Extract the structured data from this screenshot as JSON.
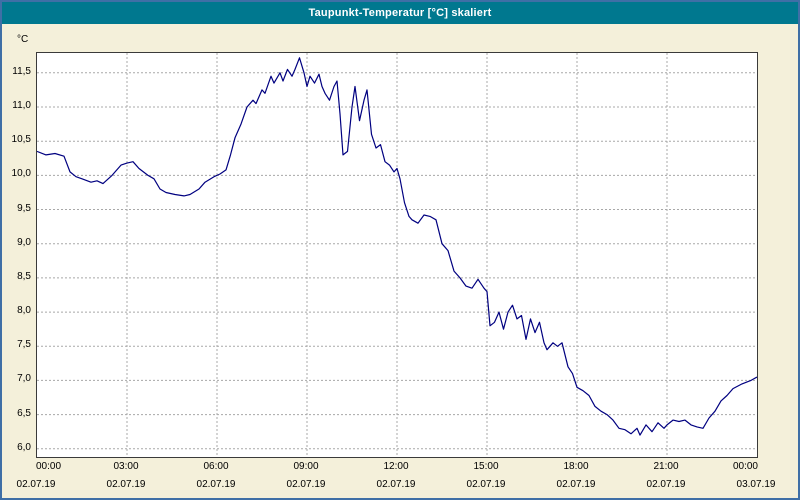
{
  "window": {
    "title": "Taupunkt-Temperatur [°C] skaliert"
  },
  "colors": {
    "titlebar": "#00788F",
    "titlebar_text": "#FFFFFF",
    "window_background": "#F4F0DA",
    "window_border": "#3F6FA6",
    "plot_background": "#FFFFFF",
    "plot_border": "#3A3A3A",
    "gridline": "#A8A8A8",
    "line": "#000080",
    "text": "#000000"
  },
  "chart_data": {
    "type": "line",
    "title": "Taupunkt-Temperatur [°C] skaliert",
    "ylabel": "°C",
    "xlabel": "",
    "grid": true,
    "legend_position": "none",
    "xlim": [
      0,
      24
    ],
    "ylim": [
      5.88,
      11.79
    ],
    "x_tick_hours": [
      0,
      3,
      6,
      9,
      12,
      15,
      18,
      21,
      24
    ],
    "x_tick_labels": [
      "00:00",
      "03:00",
      "06:00",
      "09:00",
      "12:00",
      "15:00",
      "18:00",
      "21:00",
      "00:00"
    ],
    "x_date_labels": [
      "02.07.19",
      "02.07.19",
      "02.07.19",
      "02.07.19",
      "02.07.19",
      "02.07.19",
      "02.07.19",
      "02.07.19",
      "03.07.19"
    ],
    "x_gridlines_hours": [
      3,
      6,
      9,
      12,
      15,
      18,
      21
    ],
    "y_ticks": [
      6.0,
      6.5,
      7.0,
      7.5,
      8.0,
      8.5,
      9.0,
      9.5,
      10.0,
      10.5,
      11.0,
      11.5
    ],
    "y_tick_labels": [
      "6,0",
      "6,5",
      "7,0",
      "7,5",
      "8,0",
      "8,5",
      "9,0",
      "9,5",
      "10,0",
      "10,5",
      "11,0",
      "11,5"
    ],
    "series": [
      {
        "name": "Taupunkt-Temperatur",
        "color": "#000080",
        "points": [
          [
            0.0,
            10.35
          ],
          [
            0.3,
            10.3
          ],
          [
            0.6,
            10.32
          ],
          [
            0.9,
            10.28
          ],
          [
            1.1,
            10.05
          ],
          [
            1.3,
            9.98
          ],
          [
            1.5,
            9.95
          ],
          [
            1.8,
            9.9
          ],
          [
            2.0,
            9.92
          ],
          [
            2.2,
            9.88
          ],
          [
            2.5,
            10.0
          ],
          [
            2.8,
            10.15
          ],
          [
            3.0,
            10.18
          ],
          [
            3.2,
            10.2
          ],
          [
            3.4,
            10.1
          ],
          [
            3.7,
            10.0
          ],
          [
            3.9,
            9.95
          ],
          [
            4.1,
            9.8
          ],
          [
            4.3,
            9.75
          ],
          [
            4.6,
            9.72
          ],
          [
            4.9,
            9.7
          ],
          [
            5.1,
            9.72
          ],
          [
            5.4,
            9.8
          ],
          [
            5.6,
            9.9
          ],
          [
            5.9,
            9.98
          ],
          [
            6.1,
            10.02
          ],
          [
            6.3,
            10.08
          ],
          [
            6.45,
            10.3
          ],
          [
            6.6,
            10.55
          ],
          [
            6.8,
            10.75
          ],
          [
            7.0,
            11.0
          ],
          [
            7.2,
            11.1
          ],
          [
            7.3,
            11.05
          ],
          [
            7.5,
            11.25
          ],
          [
            7.6,
            11.2
          ],
          [
            7.8,
            11.45
          ],
          [
            7.9,
            11.35
          ],
          [
            8.1,
            11.5
          ],
          [
            8.2,
            11.38
          ],
          [
            8.35,
            11.55
          ],
          [
            8.5,
            11.45
          ],
          [
            8.6,
            11.55
          ],
          [
            8.75,
            11.72
          ],
          [
            8.9,
            11.5
          ],
          [
            9.0,
            11.3
          ],
          [
            9.1,
            11.45
          ],
          [
            9.25,
            11.35
          ],
          [
            9.4,
            11.48
          ],
          [
            9.5,
            11.3
          ],
          [
            9.6,
            11.2
          ],
          [
            9.75,
            11.1
          ],
          [
            9.9,
            11.3
          ],
          [
            10.0,
            11.38
          ],
          [
            10.1,
            10.9
          ],
          [
            10.2,
            10.3
          ],
          [
            10.35,
            10.35
          ],
          [
            10.5,
            11.0
          ],
          [
            10.6,
            11.3
          ],
          [
            10.75,
            10.8
          ],
          [
            10.9,
            11.1
          ],
          [
            11.0,
            11.25
          ],
          [
            11.15,
            10.6
          ],
          [
            11.3,
            10.4
          ],
          [
            11.45,
            10.45
          ],
          [
            11.6,
            10.2
          ],
          [
            11.75,
            10.15
          ],
          [
            11.9,
            10.05
          ],
          [
            12.0,
            10.1
          ],
          [
            12.1,
            9.95
          ],
          [
            12.25,
            9.6
          ],
          [
            12.4,
            9.4
          ],
          [
            12.5,
            9.35
          ],
          [
            12.7,
            9.3
          ],
          [
            12.9,
            9.42
          ],
          [
            13.1,
            9.4
          ],
          [
            13.3,
            9.35
          ],
          [
            13.5,
            9.0
          ],
          [
            13.7,
            8.9
          ],
          [
            13.9,
            8.6
          ],
          [
            14.1,
            8.5
          ],
          [
            14.3,
            8.38
          ],
          [
            14.5,
            8.35
          ],
          [
            14.7,
            8.48
          ],
          [
            14.9,
            8.35
          ],
          [
            15.0,
            8.3
          ],
          [
            15.1,
            7.8
          ],
          [
            15.25,
            7.85
          ],
          [
            15.4,
            8.0
          ],
          [
            15.55,
            7.75
          ],
          [
            15.7,
            8.0
          ],
          [
            15.85,
            8.1
          ],
          [
            16.0,
            7.9
          ],
          [
            16.15,
            7.95
          ],
          [
            16.3,
            7.6
          ],
          [
            16.45,
            7.9
          ],
          [
            16.6,
            7.7
          ],
          [
            16.75,
            7.85
          ],
          [
            16.9,
            7.55
          ],
          [
            17.0,
            7.45
          ],
          [
            17.2,
            7.55
          ],
          [
            17.35,
            7.5
          ],
          [
            17.5,
            7.55
          ],
          [
            17.7,
            7.2
          ],
          [
            17.85,
            7.1
          ],
          [
            18.0,
            6.9
          ],
          [
            18.2,
            6.85
          ],
          [
            18.4,
            6.78
          ],
          [
            18.6,
            6.62
          ],
          [
            18.8,
            6.55
          ],
          [
            19.0,
            6.5
          ],
          [
            19.2,
            6.42
          ],
          [
            19.4,
            6.3
          ],
          [
            19.6,
            6.28
          ],
          [
            19.8,
            6.22
          ],
          [
            20.0,
            6.3
          ],
          [
            20.1,
            6.2
          ],
          [
            20.3,
            6.35
          ],
          [
            20.5,
            6.25
          ],
          [
            20.7,
            6.38
          ],
          [
            20.9,
            6.3
          ],
          [
            21.0,
            6.35
          ],
          [
            21.2,
            6.42
          ],
          [
            21.4,
            6.4
          ],
          [
            21.6,
            6.42
          ],
          [
            21.8,
            6.35
          ],
          [
            22.0,
            6.32
          ],
          [
            22.2,
            6.3
          ],
          [
            22.4,
            6.45
          ],
          [
            22.6,
            6.55
          ],
          [
            22.8,
            6.7
          ],
          [
            23.0,
            6.78
          ],
          [
            23.2,
            6.88
          ],
          [
            23.5,
            6.95
          ],
          [
            23.8,
            7.0
          ],
          [
            24.0,
            7.05
          ]
        ]
      }
    ]
  }
}
